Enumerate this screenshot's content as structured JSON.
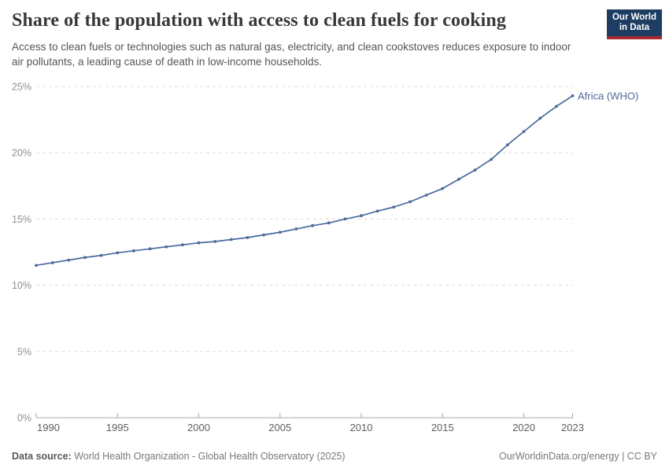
{
  "header": {
    "title": "Share of the population with access to clean fuels for cooking",
    "subtitle": "Access to clean fuels or technologies such as natural gas, electricity, and clean cookstoves reduces exposure to indoor air pollutants, a leading cause of death in low-income households.",
    "logo": {
      "line1": "Our World",
      "line2": "in Data"
    }
  },
  "chart_data": {
    "type": "line",
    "title": "Share of the population with access to clean fuels for cooking",
    "x": [
      1990,
      1991,
      1992,
      1993,
      1994,
      1995,
      1996,
      1997,
      1998,
      1999,
      2000,
      2001,
      2002,
      2003,
      2004,
      2005,
      2006,
      2007,
      2008,
      2009,
      2010,
      2011,
      2012,
      2013,
      2014,
      2015,
      2016,
      2017,
      2018,
      2019,
      2020,
      2021,
      2022,
      2023
    ],
    "series": [
      {
        "name": "Africa (WHO)",
        "color": "#4c6a9c",
        "values": [
          11.5,
          11.7,
          11.9,
          12.1,
          12.25,
          12.45,
          12.6,
          12.75,
          12.9,
          13.05,
          13.2,
          13.3,
          13.45,
          13.6,
          13.8,
          14.0,
          14.25,
          14.5,
          14.7,
          15.0,
          15.25,
          15.6,
          15.9,
          16.3,
          16.8,
          17.3,
          18.0,
          18.7,
          19.5,
          20.6,
          21.6,
          22.6,
          23.5,
          24.3
        ]
      }
    ],
    "end_label": "Africa (WHO)",
    "xlabel": "",
    "ylabel": "",
    "ylim": [
      0,
      25
    ],
    "yticks": [
      0,
      5,
      10,
      15,
      20,
      25
    ],
    "ytick_suffix": "%",
    "xticks": [
      1990,
      1995,
      2000,
      2005,
      2010,
      2015,
      2020,
      2023
    ],
    "grid": "horizontal-dashed",
    "legend_position": "end-of-line"
  },
  "footer": {
    "source_label": "Data source:",
    "source_text": " World Health Organization - Global Health Observatory (2025)",
    "license_text": "OurWorldinData.org/energy | CC BY"
  },
  "colors": {
    "accent_line": "#4c6a9c",
    "logo_bg": "#1d3d63",
    "logo_stripe": "#a82b31",
    "gridline": "#dcdcdc",
    "axis": "#a8a8a8",
    "title_text": "#373737",
    "subtitle_text": "#565656"
  }
}
